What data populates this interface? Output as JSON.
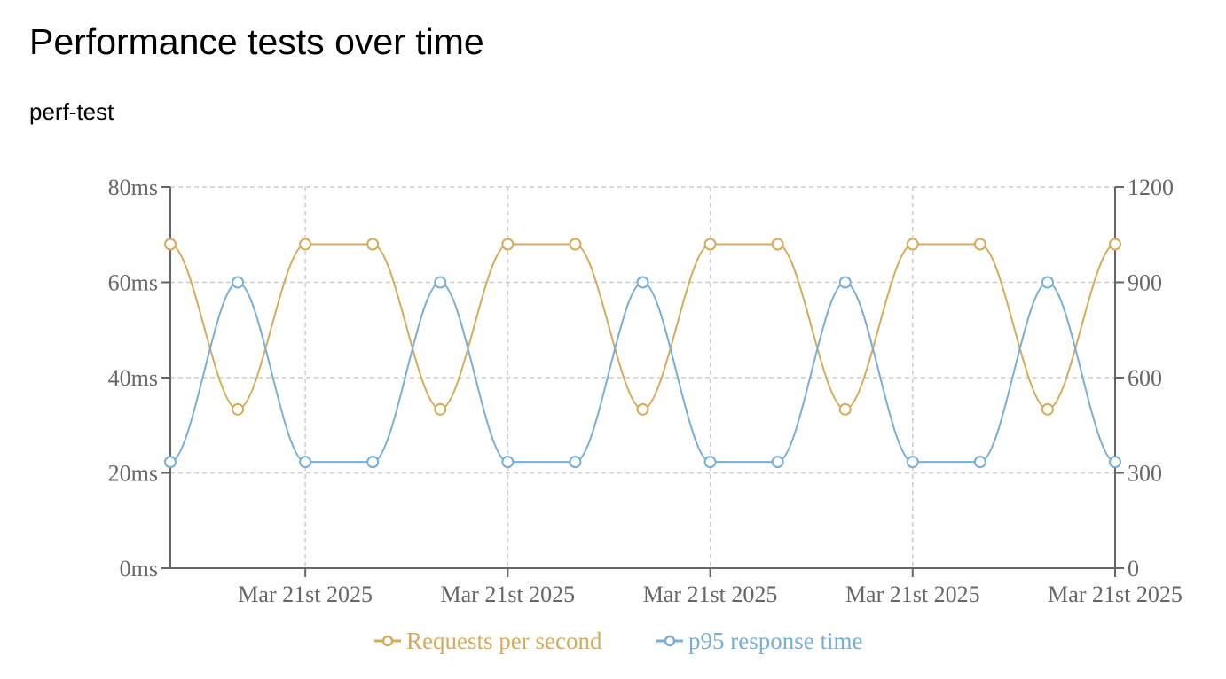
{
  "header": {
    "title": "Performance tests over time",
    "subtitle": "perf-test"
  },
  "chart_data": {
    "type": "line",
    "title": "Performance tests over time",
    "subtitle": "perf-test",
    "x_tick_labels": [
      "Mar 21st 2025",
      "Mar 21st 2025",
      "Mar 21st 2025",
      "Mar 21st 2025",
      "Mar 21st 2025"
    ],
    "x_tick_positions": [
      2,
      5,
      8,
      11,
      14
    ],
    "x": [
      0,
      1,
      2,
      3,
      4,
      5,
      6,
      7,
      8,
      9,
      10,
      11,
      12,
      13,
      14
    ],
    "y_left": {
      "range": [
        0,
        80
      ],
      "ticks": [
        "0ms",
        "20ms",
        "40ms",
        "60ms",
        "80ms"
      ],
      "tick_values": [
        0,
        20,
        40,
        60,
        80
      ]
    },
    "y_right": {
      "range": [
        0,
        1200
      ],
      "ticks": [
        "0",
        "300",
        "600",
        "900",
        "1200"
      ],
      "tick_values": [
        0,
        300,
        600,
        900,
        1200
      ]
    },
    "grid": true,
    "legend_position": "bottom",
    "series": [
      {
        "name": "Requests per second",
        "axis": "right",
        "color": "#d4ab5a",
        "values": [
          1020,
          500,
          1020,
          1020,
          500,
          1020,
          1020,
          500,
          1020,
          1020,
          500,
          1020,
          1020,
          500,
          1020
        ]
      },
      {
        "name": "p95 response time",
        "axis": "left",
        "color": "#77aed6",
        "values": [
          22.3,
          60,
          22.3,
          22.3,
          60,
          22.3,
          22.3,
          60,
          22.3,
          22.3,
          60,
          22.3,
          22.3,
          60,
          22.3
        ]
      }
    ]
  }
}
